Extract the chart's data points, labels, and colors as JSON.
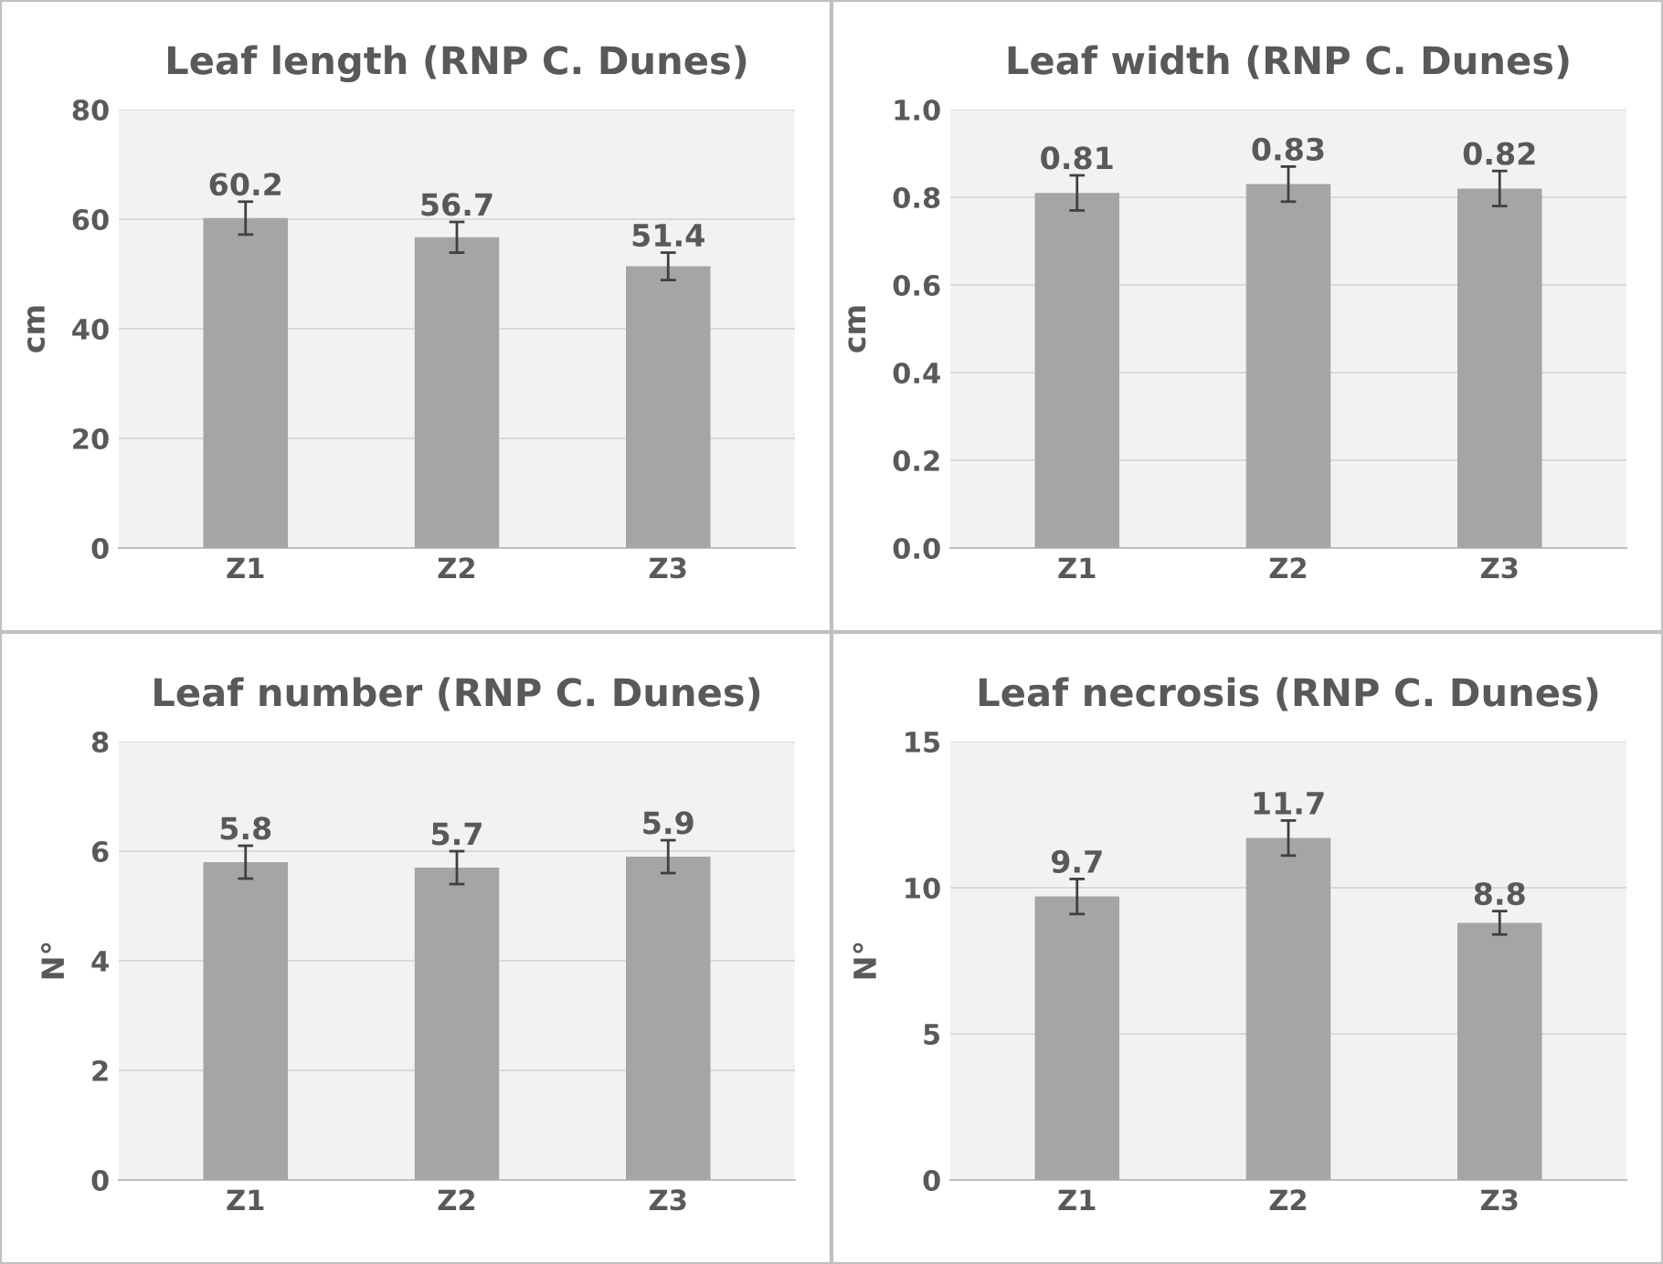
{
  "chart_data": [
    {
      "type": "bar",
      "title": "Leaf length (RNP C. Dunes)",
      "ylabel": "cm",
      "categories": [
        "Z1",
        "Z2",
        "Z3"
      ],
      "values": [
        60.2,
        56.7,
        51.4
      ],
      "errors": [
        3,
        2.8,
        2.5
      ],
      "color": "#a5a5a5",
      "ylim": [
        0,
        80
      ],
      "yticks": [
        0,
        20,
        40,
        60,
        80
      ],
      "grid": "y",
      "data_labels": true
    },
    {
      "type": "bar",
      "title": "Leaf width (RNP C. Dunes)",
      "ylabel": "cm",
      "categories": [
        "Z1",
        "Z2",
        "Z3"
      ],
      "values": [
        0.81,
        0.83,
        0.82
      ],
      "value_labels": [
        "0.81",
        "0.83",
        "0.82"
      ],
      "errors": [
        0.04,
        0.04,
        0.04
      ],
      "color": "#a5a5a5",
      "ylim": [
        0,
        1.0
      ],
      "yticks": [
        {
          "value": 0,
          "label": "0.0"
        },
        0.2,
        0.4,
        0.6,
        0.8,
        {
          "value": 1.0,
          "label": "1.0"
        }
      ],
      "grid": "y"
    },
    {
      "type": "bar",
      "title": "Leaf number (RNP C. Dunes)",
      "ylabel": "N°",
      "categories": [
        "Z1",
        "Z2",
        "Z3"
      ],
      "values": [
        5.8,
        5.7,
        5.9
      ],
      "value_labels": [
        "5.8",
        "5.7",
        "5.9"
      ],
      "errors": [
        0.3,
        0.3,
        0.3
      ],
      "color": "#a5a5a5",
      "ylim": [
        0,
        8
      ],
      "yticks": [
        0,
        2,
        4,
        6,
        8
      ],
      "grid": "y"
    },
    {
      "type": "bar",
      "title": "Leaf necrosis (RNP C. Dunes)",
      "ylabel": "N°",
      "categories": [
        "Z1",
        "Z2",
        "Z3"
      ],
      "values": [
        9.7,
        11.7,
        8.8
      ],
      "value_labels": [
        "9.7",
        "11.7",
        "8.8"
      ],
      "errors": [
        0.6,
        0.6,
        0.4
      ],
      "color": "#a5a5a5",
      "ylim": [
        0,
        15
      ],
      "yticks": [
        0,
        5,
        10,
        15
      ],
      "grid": "y"
    }
  ]
}
